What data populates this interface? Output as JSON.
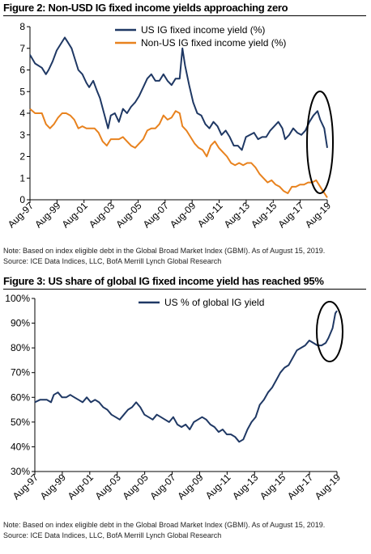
{
  "figures": [
    {
      "title": "Figure 2: Non-USD IG fixed income yields approaching zero",
      "note": "Note: Based on index eligible debt in the Global Broad Market Index (GBMI).  As of August 15, 2019.",
      "source": "Source:  ICE Data Indices, LLC, BofA Merrill Lynch Global Research"
    },
    {
      "title": "Figure 3: US share of global IG fixed income yield has reached 95%",
      "note": "Note: Based on index eligible debt in the Global Broad Market Index (GBMI).  As of August 15, 2019.",
      "source": "Source:  ICE Data Indices, LLC, BofA Merrill Lynch Global Research"
    }
  ],
  "colors": {
    "us": "#1F3864",
    "nonus": "#E8821E",
    "ellipse": "#000000"
  },
  "chart_data": [
    {
      "type": "line",
      "title": "Figure 2: Non-USD IG fixed income yields approaching zero",
      "xlabel": "",
      "ylabel": "",
      "x_tick_labels": [
        "Aug-97",
        "Aug-99",
        "Aug-01",
        "Aug-03",
        "Aug-05",
        "Aug-07",
        "Aug-09",
        "Aug-11",
        "Aug-13",
        "Aug-15",
        "Aug-17",
        "Aug-19"
      ],
      "ylim": [
        0,
        8
      ],
      "y_ticks": [
        0,
        1,
        2,
        3,
        4,
        5,
        6,
        7,
        8
      ],
      "y_tick_format": "plain",
      "legend_position": "top-right",
      "grid": false,
      "annotation": "ellipse around latest values (Aug-18 to Aug-19)",
      "series": [
        {
          "name": "US IG fixed income yield (%)",
          "color": "#1F3864",
          "points": [
            [
              1997.62,
              6.7
            ],
            [
              1998.0,
              6.3
            ],
            [
              1998.5,
              6.1
            ],
            [
              1998.8,
              5.8
            ],
            [
              1999.0,
              6.0
            ],
            [
              1999.3,
              6.4
            ],
            [
              1999.6,
              6.9
            ],
            [
              1999.9,
              7.2
            ],
            [
              2000.2,
              7.5
            ],
            [
              2000.4,
              7.3
            ],
            [
              2000.7,
              7.0
            ],
            [
              2000.9,
              6.6
            ],
            [
              2001.2,
              6.0
            ],
            [
              2001.5,
              5.8
            ],
            [
              2001.8,
              5.4
            ],
            [
              2002.0,
              5.2
            ],
            [
              2002.3,
              5.5
            ],
            [
              2002.6,
              5.0
            ],
            [
              2002.8,
              4.7
            ],
            [
              2003.1,
              4.0
            ],
            [
              2003.4,
              3.3
            ],
            [
              2003.6,
              3.9
            ],
            [
              2003.9,
              4.0
            ],
            [
              2004.2,
              3.6
            ],
            [
              2004.5,
              4.2
            ],
            [
              2004.8,
              4.0
            ],
            [
              2005.1,
              4.3
            ],
            [
              2005.4,
              4.5
            ],
            [
              2005.7,
              4.8
            ],
            [
              2006.0,
              5.2
            ],
            [
              2006.3,
              5.6
            ],
            [
              2006.6,
              5.8
            ],
            [
              2006.9,
              5.5
            ],
            [
              2007.2,
              5.5
            ],
            [
              2007.5,
              5.8
            ],
            [
              2007.8,
              5.5
            ],
            [
              2008.1,
              5.3
            ],
            [
              2008.4,
              5.6
            ],
            [
              2008.7,
              5.6
            ],
            [
              2008.9,
              7.0
            ],
            [
              2009.1,
              6.2
            ],
            [
              2009.4,
              5.3
            ],
            [
              2009.7,
              4.5
            ],
            [
              2010.0,
              4.0
            ],
            [
              2010.3,
              3.9
            ],
            [
              2010.6,
              3.5
            ],
            [
              2010.9,
              3.3
            ],
            [
              2011.2,
              3.6
            ],
            [
              2011.5,
              3.4
            ],
            [
              2011.8,
              3.0
            ],
            [
              2012.1,
              3.2
            ],
            [
              2012.4,
              2.9
            ],
            [
              2012.7,
              2.5
            ],
            [
              2013.0,
              2.5
            ],
            [
              2013.3,
              2.3
            ],
            [
              2013.6,
              2.9
            ],
            [
              2013.9,
              3.0
            ],
            [
              2014.2,
              3.1
            ],
            [
              2014.5,
              2.8
            ],
            [
              2014.8,
              2.9
            ],
            [
              2015.1,
              2.9
            ],
            [
              2015.4,
              3.2
            ],
            [
              2015.7,
              3.4
            ],
            [
              2016.0,
              3.6
            ],
            [
              2016.3,
              3.3
            ],
            [
              2016.5,
              2.8
            ],
            [
              2016.8,
              3.0
            ],
            [
              2017.1,
              3.3
            ],
            [
              2017.4,
              3.1
            ],
            [
              2017.7,
              3.0
            ],
            [
              2018.0,
              3.2
            ],
            [
              2018.3,
              3.6
            ],
            [
              2018.6,
              3.9
            ],
            [
              2018.9,
              4.1
            ],
            [
              2019.1,
              3.7
            ],
            [
              2019.4,
              3.3
            ],
            [
              2019.62,
              2.4
            ]
          ]
        },
        {
          "name": "Non-US IG fixed income yield (%)",
          "color": "#E8821E",
          "points": [
            [
              1997.62,
              4.2
            ],
            [
              1998.0,
              4.0
            ],
            [
              1998.5,
              4.0
            ],
            [
              1998.8,
              3.5
            ],
            [
              1999.1,
              3.3
            ],
            [
              1999.4,
              3.5
            ],
            [
              1999.7,
              3.8
            ],
            [
              2000.0,
              4.0
            ],
            [
              2000.3,
              4.0
            ],
            [
              2000.6,
              3.9
            ],
            [
              2000.9,
              3.7
            ],
            [
              2001.2,
              3.3
            ],
            [
              2001.5,
              3.4
            ],
            [
              2001.8,
              3.3
            ],
            [
              2002.1,
              3.3
            ],
            [
              2002.4,
              3.3
            ],
            [
              2002.7,
              3.1
            ],
            [
              2003.0,
              2.7
            ],
            [
              2003.3,
              2.5
            ],
            [
              2003.6,
              2.8
            ],
            [
              2003.9,
              2.8
            ],
            [
              2004.2,
              2.8
            ],
            [
              2004.5,
              2.9
            ],
            [
              2004.8,
              2.7
            ],
            [
              2005.1,
              2.5
            ],
            [
              2005.4,
              2.4
            ],
            [
              2005.7,
              2.6
            ],
            [
              2006.0,
              2.8
            ],
            [
              2006.3,
              3.2
            ],
            [
              2006.6,
              3.3
            ],
            [
              2006.9,
              3.3
            ],
            [
              2007.2,
              3.5
            ],
            [
              2007.5,
              3.9
            ],
            [
              2007.8,
              3.7
            ],
            [
              2008.1,
              3.8
            ],
            [
              2008.4,
              4.1
            ],
            [
              2008.7,
              4.0
            ],
            [
              2008.9,
              3.4
            ],
            [
              2009.2,
              3.2
            ],
            [
              2009.5,
              2.9
            ],
            [
              2009.8,
              2.6
            ],
            [
              2010.1,
              2.4
            ],
            [
              2010.4,
              2.3
            ],
            [
              2010.7,
              2.0
            ],
            [
              2011.0,
              2.5
            ],
            [
              2011.3,
              2.7
            ],
            [
              2011.6,
              2.4
            ],
            [
              2011.9,
              2.2
            ],
            [
              2012.2,
              2.0
            ],
            [
              2012.5,
              1.7
            ],
            [
              2012.8,
              1.6
            ],
            [
              2013.1,
              1.7
            ],
            [
              2013.4,
              1.6
            ],
            [
              2013.7,
              1.7
            ],
            [
              2014.0,
              1.7
            ],
            [
              2014.3,
              1.5
            ],
            [
              2014.6,
              1.2
            ],
            [
              2014.9,
              1.0
            ],
            [
              2015.2,
              0.8
            ],
            [
              2015.5,
              0.9
            ],
            [
              2015.8,
              0.7
            ],
            [
              2016.1,
              0.6
            ],
            [
              2016.4,
              0.4
            ],
            [
              2016.7,
              0.3
            ],
            [
              2017.0,
              0.6
            ],
            [
              2017.3,
              0.6
            ],
            [
              2017.6,
              0.7
            ],
            [
              2017.9,
              0.7
            ],
            [
              2018.2,
              0.8
            ],
            [
              2018.5,
              0.8
            ],
            [
              2018.8,
              0.9
            ],
            [
              2019.0,
              0.7
            ],
            [
              2019.3,
              0.4
            ],
            [
              2019.62,
              0.1
            ]
          ]
        }
      ]
    },
    {
      "type": "line",
      "title": "Figure 3: US share of global IG fixed income yield has reached 95%",
      "xlabel": "",
      "ylabel": "",
      "x_tick_labels": [
        "Aug-97",
        "Aug-99",
        "Aug-01",
        "Aug-03",
        "Aug-05",
        "Aug-07",
        "Aug-09",
        "Aug-11",
        "Aug-13",
        "Aug-15",
        "Aug-17",
        "Aug-19"
      ],
      "ylim": [
        30,
        100
      ],
      "y_ticks": [
        30,
        40,
        50,
        60,
        70,
        80,
        90,
        100
      ],
      "y_tick_format": "percent",
      "legend_position": "top-center",
      "grid": false,
      "annotation": "ellipse around latest values (Aug-18 to Aug-19)",
      "series": [
        {
          "name": "US % of global IG yield",
          "color": "#1F3864",
          "points": [
            [
              1997.62,
              58
            ],
            [
              1998.0,
              59
            ],
            [
              1998.5,
              59
            ],
            [
              1998.8,
              58
            ],
            [
              1999.0,
              61
            ],
            [
              1999.3,
              62
            ],
            [
              1999.6,
              60
            ],
            [
              1999.9,
              60
            ],
            [
              2000.2,
              61
            ],
            [
              2000.5,
              60
            ],
            [
              2000.8,
              59
            ],
            [
              2001.1,
              58
            ],
            [
              2001.4,
              60
            ],
            [
              2001.7,
              58
            ],
            [
              2002.0,
              59
            ],
            [
              2002.3,
              58
            ],
            [
              2002.6,
              56
            ],
            [
              2002.9,
              55
            ],
            [
              2003.2,
              53
            ],
            [
              2003.5,
              52
            ],
            [
              2003.8,
              51
            ],
            [
              2004.1,
              53
            ],
            [
              2004.4,
              55
            ],
            [
              2004.7,
              56
            ],
            [
              2005.0,
              58
            ],
            [
              2005.3,
              56
            ],
            [
              2005.6,
              53
            ],
            [
              2005.9,
              52
            ],
            [
              2006.2,
              51
            ],
            [
              2006.5,
              53
            ],
            [
              2006.8,
              52
            ],
            [
              2007.1,
              51
            ],
            [
              2007.4,
              50
            ],
            [
              2007.7,
              52
            ],
            [
              2008.0,
              49
            ],
            [
              2008.3,
              48
            ],
            [
              2008.6,
              49
            ],
            [
              2008.9,
              47
            ],
            [
              2009.2,
              50
            ],
            [
              2009.5,
              51
            ],
            [
              2009.8,
              52
            ],
            [
              2010.1,
              51
            ],
            [
              2010.4,
              49
            ],
            [
              2010.7,
              48
            ],
            [
              2011.0,
              46
            ],
            [
              2011.3,
              47
            ],
            [
              2011.6,
              45
            ],
            [
              2011.9,
              45
            ],
            [
              2012.2,
              44
            ],
            [
              2012.5,
              42
            ],
            [
              2012.8,
              43
            ],
            [
              2013.1,
              47
            ],
            [
              2013.4,
              50
            ],
            [
              2013.7,
              52
            ],
            [
              2014.0,
              57
            ],
            [
              2014.3,
              59
            ],
            [
              2014.6,
              62
            ],
            [
              2014.9,
              64
            ],
            [
              2015.2,
              67
            ],
            [
              2015.5,
              70
            ],
            [
              2015.8,
              72
            ],
            [
              2016.1,
              73
            ],
            [
              2016.4,
              76
            ],
            [
              2016.7,
              79
            ],
            [
              2017.0,
              80
            ],
            [
              2017.3,
              81
            ],
            [
              2017.6,
              83
            ],
            [
              2017.9,
              82
            ],
            [
              2018.2,
              81
            ],
            [
              2018.5,
              81
            ],
            [
              2018.8,
              82
            ],
            [
              2019.0,
              84
            ],
            [
              2019.3,
              88
            ],
            [
              2019.5,
              94
            ],
            [
              2019.62,
              95
            ]
          ]
        }
      ]
    }
  ]
}
